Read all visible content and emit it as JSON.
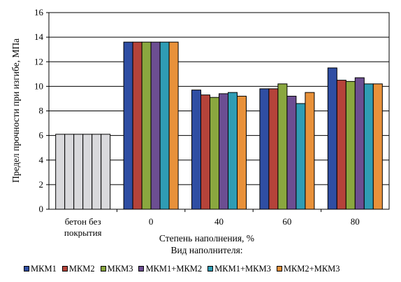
{
  "chart_data": {
    "type": "bar",
    "ylabel": "Предел прочности при изгибе, МПа",
    "xlabel": "Степень наполнения, %",
    "legend_title": "Вид наполнителя:",
    "ylim": [
      0,
      16
    ],
    "yticks": [
      0,
      2,
      4,
      6,
      8,
      10,
      12,
      14,
      16
    ],
    "categories": [
      "бетон без покрытия",
      "0",
      "40",
      "60",
      "80"
    ],
    "category_label_lines": [
      [
        "бетон без",
        "покрытия"
      ],
      [
        "0"
      ],
      [
        "40"
      ],
      [
        "60"
      ],
      [
        "80"
      ]
    ],
    "reference_color": "#d9d9dc",
    "series": [
      {
        "name": "МКМ1",
        "color": "#2f4ea3",
        "values": [
          6.1,
          13.6,
          9.7,
          9.8,
          11.5
        ]
      },
      {
        "name": "МКМ2",
        "color": "#b5433a",
        "values": [
          6.1,
          13.6,
          9.3,
          9.8,
          10.5
        ]
      },
      {
        "name": "МКМ3",
        "color": "#8aa73f",
        "values": [
          6.1,
          13.6,
          9.1,
          10.2,
          10.4
        ]
      },
      {
        "name": "МКМ1+МКМ2",
        "color": "#6c4e92",
        "values": [
          6.1,
          13.6,
          9.4,
          9.2,
          10.7
        ]
      },
      {
        "name": "МКМ1+МКМ3",
        "color": "#2f9cb4",
        "values": [
          6.1,
          13.6,
          9.5,
          8.6,
          10.2
        ]
      },
      {
        "name": "МКМ2+МКМ3",
        "color": "#e8913a",
        "values": [
          6.1,
          13.6,
          9.2,
          9.5,
          10.2
        ]
      }
    ],
    "grid": true,
    "legend_position": "bottom"
  }
}
